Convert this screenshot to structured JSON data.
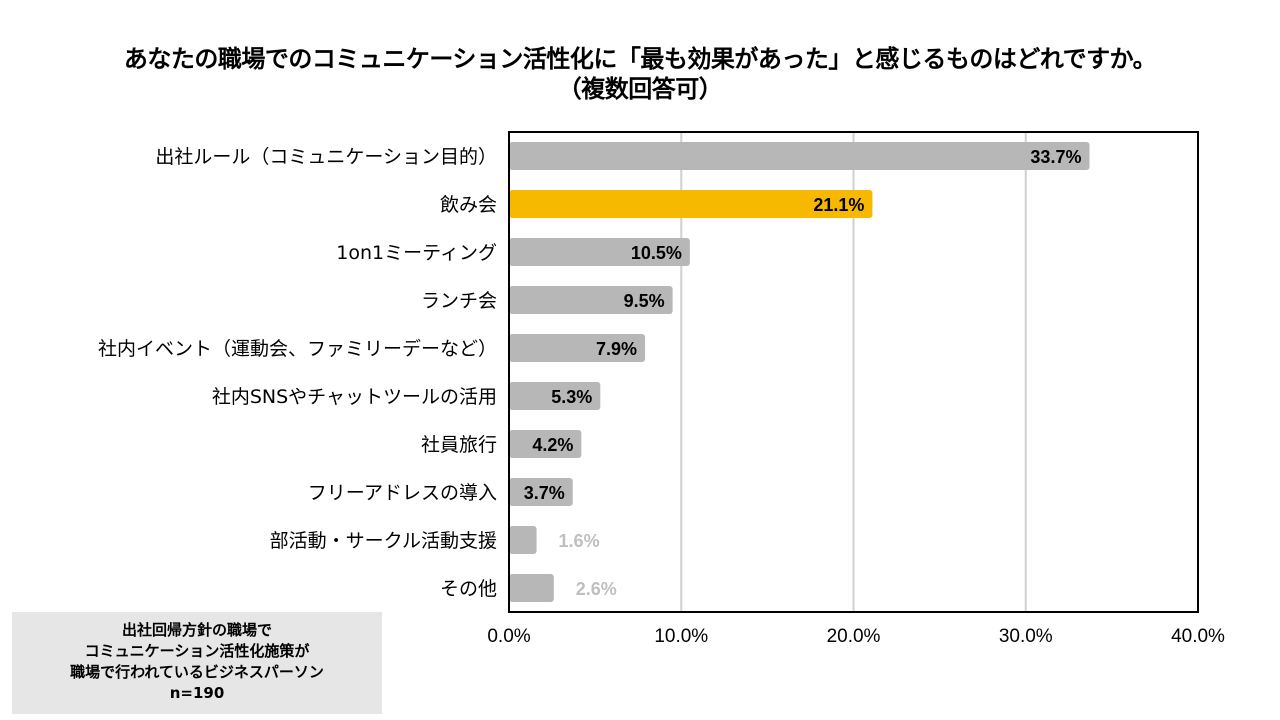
{
  "title": {
    "line1": "あなたの職場でのコミュニケーション活性化に「最も効果があった」と感じるものはどれですか。",
    "line2": "（複数回答可）"
  },
  "colors": {
    "bar_default": "#b7b7b7",
    "bar_highlight": "#f7b800",
    "label_dark": "#000000",
    "label_light": "#bfbfbf",
    "grid": "#d0d0d0",
    "note_bg": "#e6e6e6"
  },
  "chart_data": {
    "type": "bar",
    "orientation": "horizontal",
    "categories": [
      "出社ルール（コミュニケーション目的）",
      "飲み会",
      "1on1ミーティング",
      "ランチ会",
      "社内イベント（運動会、ファミリーデーなど）",
      "社内SNSやチャットツールの活用",
      "社員旅行",
      "フリーアドレスの導入",
      "部活動・サークル活動支援",
      "その他"
    ],
    "values": [
      33.7,
      21.1,
      10.5,
      9.5,
      7.9,
      5.3,
      4.2,
      3.7,
      1.6,
      2.6
    ],
    "value_labels": [
      "33.7%",
      "21.1%",
      "10.5%",
      "9.5%",
      "7.9%",
      "5.3%",
      "4.2%",
      "3.7%",
      "1.6%",
      "2.6%"
    ],
    "highlight_index": 1,
    "label_outside": [
      false,
      false,
      false,
      false,
      false,
      false,
      false,
      false,
      true,
      true
    ],
    "xlim": [
      0,
      40
    ],
    "xticks": [
      0,
      10,
      20,
      30,
      40
    ],
    "xtick_labels": [
      "0.0%",
      "10.0%",
      "20.0%",
      "30.0%",
      "40.0%"
    ],
    "grid": true,
    "legend": "none"
  },
  "note": {
    "line1": "出社回帰方針の職場で",
    "line2": "コミュニケーション活性化施策が",
    "line3": "職場で行われているビジネスパーソン",
    "line4": "n=190"
  }
}
